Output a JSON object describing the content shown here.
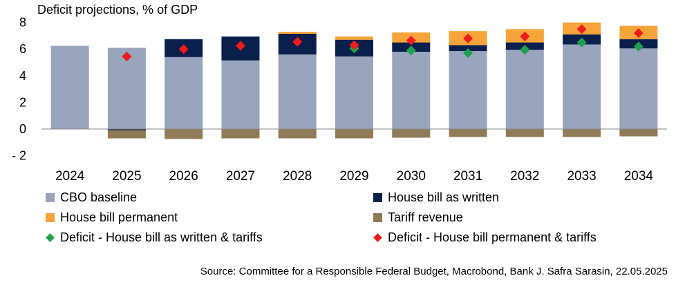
{
  "chart_data": {
    "type": "bar",
    "title": "Deficit projections, % of GDP",
    "xlabel": "",
    "ylabel": "",
    "ylim": [
      -2,
      8
    ],
    "yticks": [
      -2,
      0,
      2,
      4,
      6,
      8
    ],
    "ytick_labels": [
      "- 2",
      "0",
      "2",
      "4",
      "6",
      "8"
    ],
    "grid": false,
    "legend_position": "bottom",
    "categories": [
      "2024",
      "2025",
      "2026",
      "2027",
      "2028",
      "2029",
      "2030",
      "2031",
      "2032",
      "2033",
      "2034"
    ],
    "stack_series": [
      {
        "name": "CBO baseline",
        "color": "#99a4bd",
        "values": [
          6.25,
          6.1,
          5.4,
          5.15,
          5.6,
          5.45,
          5.8,
          5.85,
          5.95,
          6.35,
          6.05
        ]
      },
      {
        "name": "House bill as written",
        "color": "#0b1f4d",
        "values": [
          0,
          -0.1,
          1.35,
          1.8,
          1.55,
          1.25,
          0.7,
          0.45,
          0.55,
          0.75,
          0.7
        ]
      },
      {
        "name": "House bill permanent",
        "color": "#f6a43a",
        "values": [
          0,
          0,
          0,
          0,
          0.15,
          0.25,
          0.75,
          1.05,
          1.0,
          0.9,
          1.0
        ]
      },
      {
        "name": "Tariff revenue",
        "color": "#8f7b58",
        "values": [
          0,
          -0.6,
          -0.75,
          -0.7,
          -0.7,
          -0.7,
          -0.65,
          -0.6,
          -0.6,
          -0.6,
          -0.55
        ]
      }
    ],
    "marker_series": [
      {
        "name": "Deficit -  House bill as written & tariffs",
        "color": "#1fa149",
        "values": [
          null,
          null,
          null,
          null,
          null,
          6.05,
          5.9,
          5.7,
          5.95,
          6.5,
          6.2
        ]
      },
      {
        "name": "Deficit - House bill permanent & tariffs",
        "color": "#ee1c1c",
        "values": [
          null,
          5.45,
          6.0,
          6.25,
          6.55,
          6.3,
          6.65,
          6.8,
          6.95,
          7.5,
          7.2
        ]
      }
    ]
  },
  "source": "Source: Committee for a Responsible Federal Budget, Macrobond, Bank J. Safra Sarasin, 22.05.2025"
}
